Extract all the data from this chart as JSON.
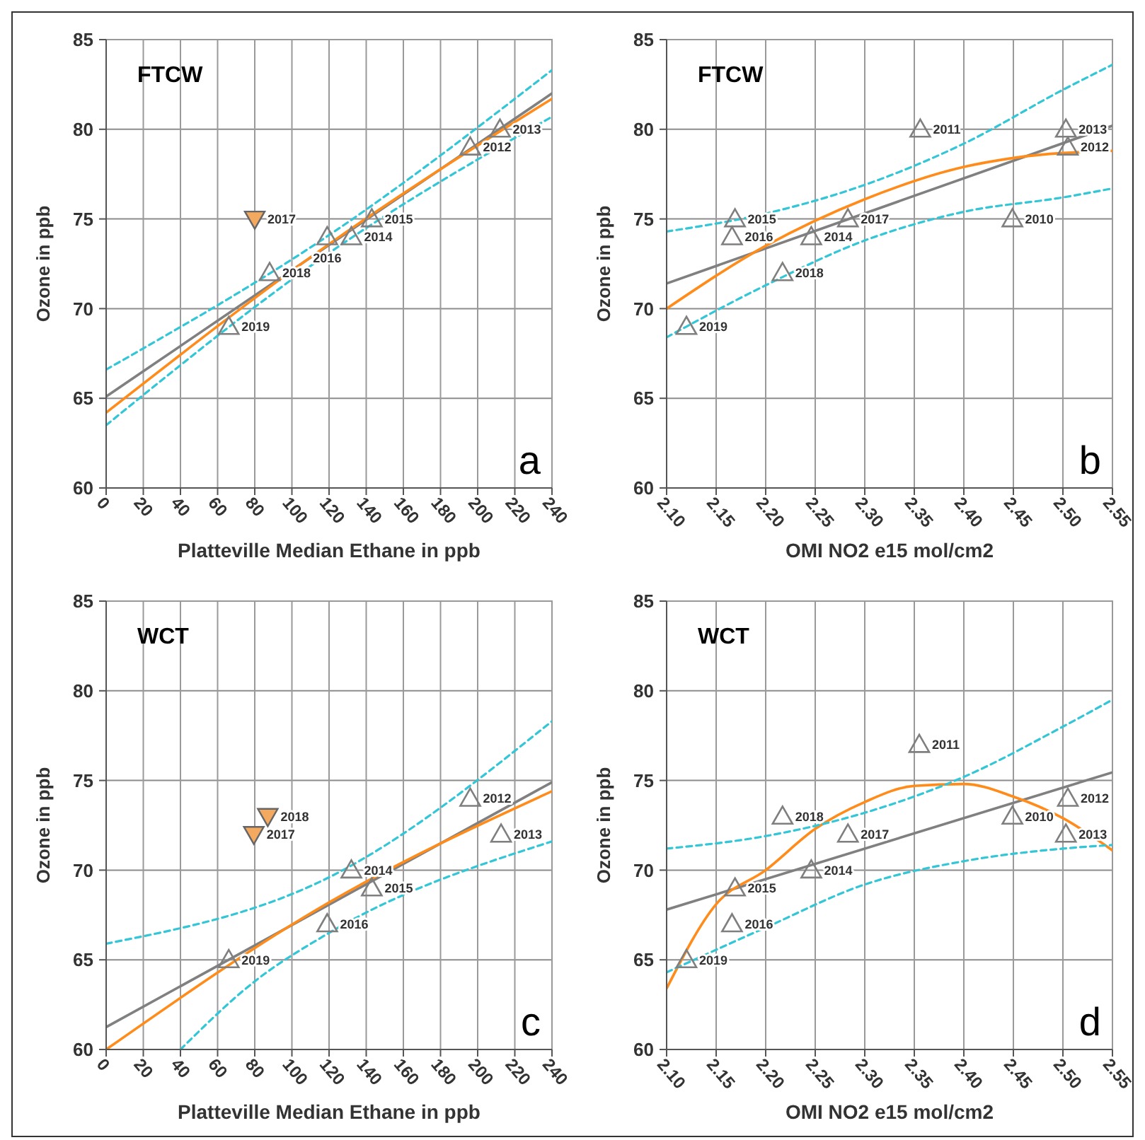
{
  "chart_data": [
    {
      "type": "scatter",
      "title": "FTCW",
      "xlabel": "Platteville Median Ethane in ppb",
      "ylabel": "Ozone in ppb",
      "xlim": [
        0,
        240
      ],
      "xticks": [
        0,
        20,
        40,
        60,
        80,
        100,
        120,
        140,
        160,
        180,
        200,
        220,
        240
      ],
      "ylim": [
        60,
        85
      ],
      "yticks": [
        60,
        65,
        70,
        75,
        80,
        85
      ],
      "grid": true,
      "series": [
        {
          "type": "line",
          "color": "#808080",
          "x": [
            0,
            240
          ],
          "values": [
            65.1,
            82.0
          ]
        },
        {
          "type": "line",
          "color": "#ff8c1a",
          "x": [
            0,
            120,
            240
          ],
          "values": [
            64.2,
            73.6,
            81.7
          ]
        },
        {
          "type": "line",
          "color": "#33c6d6",
          "line_style": "dashed",
          "x": [
            0,
            120,
            240
          ],
          "values": [
            66.6,
            74.1,
            83.3
          ]
        },
        {
          "type": "line",
          "color": "#33c6d6",
          "line_style": "dashed",
          "x": [
            0,
            120,
            240
          ],
          "values": [
            63.5,
            73.1,
            80.7
          ]
        },
        {
          "type": "scatter",
          "color": "#7f7f7f",
          "marker": "triangle",
          "x": [
            66,
            88,
            119,
            132,
            143,
            196,
            212
          ],
          "values": [
            69,
            72,
            74,
            74,
            75,
            79,
            80
          ]
        },
        {
          "type": "scatter",
          "color": "#f4a960",
          "marker": "triangle-down",
          "x": [
            80
          ],
          "values": [
            75
          ]
        }
      ],
      "annotations": [
        "a",
        {
          "text": "2019",
          "x": 66,
          "y": 69
        },
        {
          "text": "2018",
          "x": 88,
          "y": 72
        },
        {
          "text": "2017",
          "x": 80,
          "y": 75
        },
        {
          "text": "2016",
          "x": 119,
          "y": 74
        },
        {
          "text": "2014",
          "x": 132,
          "y": 74
        },
        {
          "text": "2015",
          "x": 143,
          "y": 75
        },
        {
          "text": "2012",
          "x": 196,
          "y": 79
        },
        {
          "text": "2013",
          "x": 212,
          "y": 80
        }
      ]
    },
    {
      "type": "scatter",
      "title": "FTCW",
      "xlabel": "OMI NO2 e15 mol/cm2",
      "ylabel": "Ozone in ppb",
      "xlim": [
        2.1,
        2.55
      ],
      "xticks": [
        {
          "value": 2.1,
          "label": "2.10"
        },
        {
          "value": 2.15,
          "label": "2.15"
        },
        {
          "value": 2.2,
          "label": "2.20"
        },
        {
          "value": 2.25,
          "label": "2.25"
        },
        {
          "value": 2.3,
          "label": "2.30"
        },
        {
          "value": 2.35,
          "label": "2.35"
        },
        {
          "value": 2.4,
          "label": "2.40"
        },
        {
          "value": 2.45,
          "label": "2.45"
        },
        {
          "value": 2.5,
          "label": "2.50"
        },
        {
          "value": 2.55,
          "label": "2.55"
        }
      ],
      "ylim": [
        60,
        85
      ],
      "yticks": [
        60,
        65,
        70,
        75,
        80,
        85
      ],
      "grid": true,
      "series": [
        {
          "type": "line",
          "color": "#808080",
          "x": [
            2.1,
            2.55
          ],
          "values": [
            71.4,
            80.2
          ]
        },
        {
          "type": "line",
          "color": "#ff8c1a",
          "x": [
            2.1,
            2.2,
            2.3,
            2.4,
            2.45,
            2.55
          ],
          "values": [
            70.0,
            73.5,
            76.1,
            77.9,
            78.4,
            78.8
          ]
        },
        {
          "type": "line",
          "color": "#33c6d6",
          "line_style": "dashed",
          "x": [
            2.1,
            2.2,
            2.3,
            2.4,
            2.5,
            2.55
          ],
          "values": [
            74.3,
            75.3,
            76.9,
            79.2,
            82.2,
            83.6
          ]
        },
        {
          "type": "line",
          "color": "#33c6d6",
          "line_style": "dashed",
          "x": [
            2.1,
            2.2,
            2.3,
            2.4,
            2.5,
            2.55
          ],
          "values": [
            68.4,
            71.3,
            73.8,
            75.4,
            76.2,
            76.7
          ]
        },
        {
          "type": "scatter",
          "color": "#7f7f7f",
          "marker": "triangle",
          "x": [
            2.12,
            2.166,
            2.169,
            2.217,
            2.246,
            2.283,
            2.356,
            2.449,
            2.503,
            2.505
          ],
          "values": [
            69,
            74,
            75,
            72,
            74,
            75,
            80,
            75,
            80,
            79
          ]
        }
      ],
      "annotations": [
        "b",
        {
          "text": "2019",
          "x": 2.12,
          "y": 69
        },
        {
          "text": "2016",
          "x": 2.166,
          "y": 74
        },
        {
          "text": "2015",
          "x": 2.169,
          "y": 75
        },
        {
          "text": "2018",
          "x": 2.217,
          "y": 72
        },
        {
          "text": "2014",
          "x": 2.246,
          "y": 74
        },
        {
          "text": "2017",
          "x": 2.283,
          "y": 75
        },
        {
          "text": "2011",
          "x": 2.356,
          "y": 80
        },
        {
          "text": "2010",
          "x": 2.449,
          "y": 75
        },
        {
          "text": "2013",
          "x": 2.503,
          "y": 80
        },
        {
          "text": "2012",
          "x": 2.505,
          "y": 79
        }
      ]
    },
    {
      "type": "scatter",
      "title": "WCT",
      "xlabel": "Platteville Median Ethane in ppb",
      "ylabel": "Ozone in ppb",
      "xlim": [
        0,
        240
      ],
      "xticks": [
        0,
        20,
        40,
        60,
        80,
        100,
        120,
        140,
        160,
        180,
        200,
        220,
        240
      ],
      "ylim": [
        60,
        85
      ],
      "yticks": [
        60,
        65,
        70,
        75,
        80,
        85
      ],
      "grid": true,
      "series": [
        {
          "type": "line",
          "color": "#808080",
          "x": [
            0,
            240
          ],
          "values": [
            61.25,
            74.9
          ]
        },
        {
          "type": "line",
          "color": "#ff8c1a",
          "x": [
            0,
            120,
            240
          ],
          "values": [
            60.0,
            68.2,
            74.4
          ]
        },
        {
          "type": "line",
          "color": "#33c6d6",
          "line_style": "dashed",
          "x": [
            0,
            120,
            240
          ],
          "values": [
            65.9,
            69.6,
            78.3
          ]
        },
        {
          "type": "line",
          "color": "#33c6d6",
          "line_style": "dashed",
          "x": [
            40,
            80,
            120,
            240
          ],
          "values": [
            60.0,
            63.8,
            66.5,
            71.6
          ]
        },
        {
          "type": "scatter",
          "color": "#7f7f7f",
          "marker": "triangle",
          "x": [
            66,
            119,
            132,
            143,
            196,
            212.6
          ],
          "values": [
            65,
            67,
            70,
            69,
            74,
            72
          ]
        },
        {
          "type": "scatter",
          "color": "#f4a960",
          "marker": "triangle-down",
          "x": [
            79.5,
            87
          ],
          "values": [
            72,
            73
          ]
        }
      ],
      "annotations": [
        "c",
        {
          "text": "2019",
          "x": 66,
          "y": 65
        },
        {
          "text": "2017",
          "x": 79.5,
          "y": 72
        },
        {
          "text": "2018",
          "x": 87,
          "y": 73
        },
        {
          "text": "2016",
          "x": 119,
          "y": 67
        },
        {
          "text": "2014",
          "x": 132,
          "y": 70
        },
        {
          "text": "2015",
          "x": 143,
          "y": 69
        },
        {
          "text": "2012",
          "x": 196,
          "y": 74
        },
        {
          "text": "2013",
          "x": 212.6,
          "y": 72
        }
      ]
    },
    {
      "type": "scatter",
      "title": "WCT",
      "xlabel": "OMI NO2 e15 mol/cm2",
      "ylabel": "Ozone in ppb",
      "xlim": [
        2.1,
        2.55
      ],
      "xticks": [
        {
          "value": 2.1,
          "label": "2.10"
        },
        {
          "value": 2.15,
          "label": "2.15"
        },
        {
          "value": 2.2,
          "label": "2.20"
        },
        {
          "value": 2.25,
          "label": "2.25"
        },
        {
          "value": 2.3,
          "label": "2.30"
        },
        {
          "value": 2.35,
          "label": "2.35"
        },
        {
          "value": 2.4,
          "label": "2.40"
        },
        {
          "value": 2.45,
          "label": "2.45"
        },
        {
          "value": 2.5,
          "label": "2.50"
        },
        {
          "value": 2.55,
          "label": "2.55"
        }
      ],
      "ylim": [
        60,
        85
      ],
      "yticks": [
        60,
        65,
        70,
        75,
        80,
        85
      ],
      "grid": true,
      "series": [
        {
          "type": "line",
          "color": "#808080",
          "x": [
            2.1,
            2.55
          ],
          "values": [
            67.8,
            75.45
          ]
        },
        {
          "type": "line",
          "color": "#ff8c1a",
          "x": [
            2.1,
            2.15,
            2.2,
            2.25,
            2.3,
            2.35,
            2.4,
            2.45,
            2.5,
            2.55
          ],
          "values": [
            63.4,
            68.1,
            70.0,
            72.3,
            73.8,
            74.7,
            74.8,
            74.1,
            72.9,
            71.1
          ]
        },
        {
          "type": "line",
          "color": "#33c6d6",
          "line_style": "dashed",
          "x": [
            2.1,
            2.2,
            2.3,
            2.4,
            2.5,
            2.55
          ],
          "values": [
            71.2,
            71.9,
            73.2,
            75.2,
            78.0,
            79.5
          ]
        },
        {
          "type": "line",
          "color": "#33c6d6",
          "line_style": "dashed",
          "x": [
            2.1,
            2.2,
            2.3,
            2.4,
            2.5,
            2.55
          ],
          "values": [
            64.3,
            66.8,
            69.2,
            70.5,
            71.2,
            71.4
          ]
        },
        {
          "type": "scatter",
          "color": "#7f7f7f",
          "marker": "triangle",
          "x": [
            2.12,
            2.166,
            2.169,
            2.217,
            2.246,
            2.283,
            2.355,
            2.449,
            2.503,
            2.505
          ],
          "values": [
            65,
            67,
            69,
            73,
            70,
            72,
            77,
            73,
            72,
            74
          ]
        }
      ],
      "annotations": [
        "d",
        {
          "text": "2019",
          "x": 2.12,
          "y": 65
        },
        {
          "text": "2016",
          "x": 2.166,
          "y": 67
        },
        {
          "text": "2015",
          "x": 2.169,
          "y": 69
        },
        {
          "text": "2018",
          "x": 2.217,
          "y": 73
        },
        {
          "text": "2014",
          "x": 2.246,
          "y": 70
        },
        {
          "text": "2017",
          "x": 2.283,
          "y": 72
        },
        {
          "text": "2011",
          "x": 2.355,
          "y": 77
        },
        {
          "text": "2010",
          "x": 2.449,
          "y": 73
        },
        {
          "text": "2013",
          "x": 2.503,
          "y": 72
        },
        {
          "text": "2012",
          "x": 2.505,
          "y": 74
        }
      ]
    }
  ]
}
